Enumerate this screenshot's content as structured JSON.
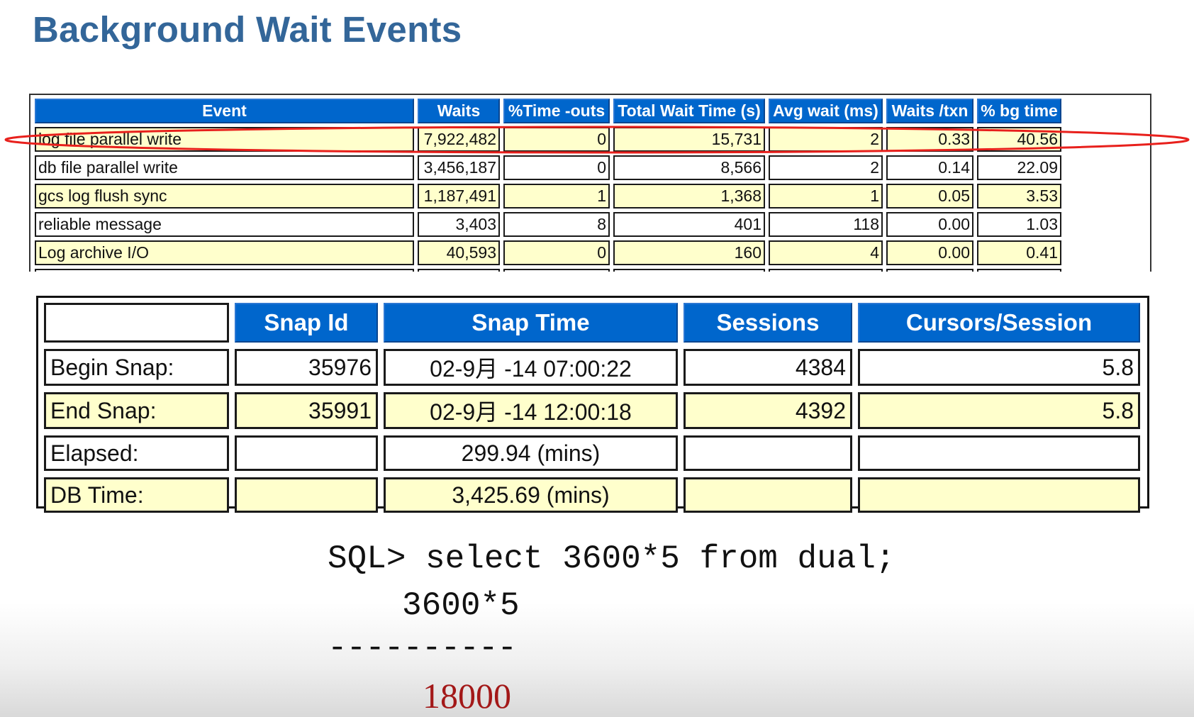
{
  "title": "Background Wait Events",
  "wait_events": {
    "columns": [
      "Event",
      "Waits",
      "%Time -outs",
      "Total Wait Time (s)",
      "Avg wait (ms)",
      "Waits /txn",
      "% bg time"
    ],
    "rows": [
      [
        "log file parallel write",
        "7,922,482",
        "0",
        "15,731",
        "2",
        "0.33",
        "40.56"
      ],
      [
        "db file parallel write",
        "3,456,187",
        "0",
        "8,566",
        "2",
        "0.14",
        "22.09"
      ],
      [
        "gcs log flush sync",
        "1,187,491",
        "1",
        "1,368",
        "1",
        "0.05",
        "3.53"
      ],
      [
        "reliable message",
        "3,403",
        "8",
        "401",
        "118",
        "0.00",
        "1.03"
      ],
      [
        "Log archive I/O",
        "40,593",
        "0",
        "160",
        "4",
        "0.00",
        "0.41"
      ]
    ],
    "highlighted_row": 0,
    "highlight_color": "#e8201c"
  },
  "snap_info": {
    "columns": [
      "",
      "Snap Id",
      "Snap Time",
      "Sessions",
      "Cursors/Session"
    ],
    "rows": [
      [
        "Begin Snap:",
        "35976",
        "02-9月 -14 07:00:22",
        "4384",
        "5.8"
      ],
      [
        "End Snap:",
        "35991",
        "02-9月 -14 12:00:18",
        "4392",
        "5.8"
      ],
      [
        "Elapsed:",
        "",
        "299.94 (mins)",
        "",
        ""
      ],
      [
        "DB Time:",
        "",
        "3,425.69 (mins)",
        "",
        ""
      ]
    ]
  },
  "sql": {
    "command": "SQL> select 3600*5 from dual;",
    "column_header": "3600*5",
    "separator": "----------",
    "result": "18000"
  },
  "colors": {
    "title": "#336699",
    "header_bg": "#0066cc",
    "alt_row_bg": "#ffffcc",
    "result_text": "#a31818"
  }
}
